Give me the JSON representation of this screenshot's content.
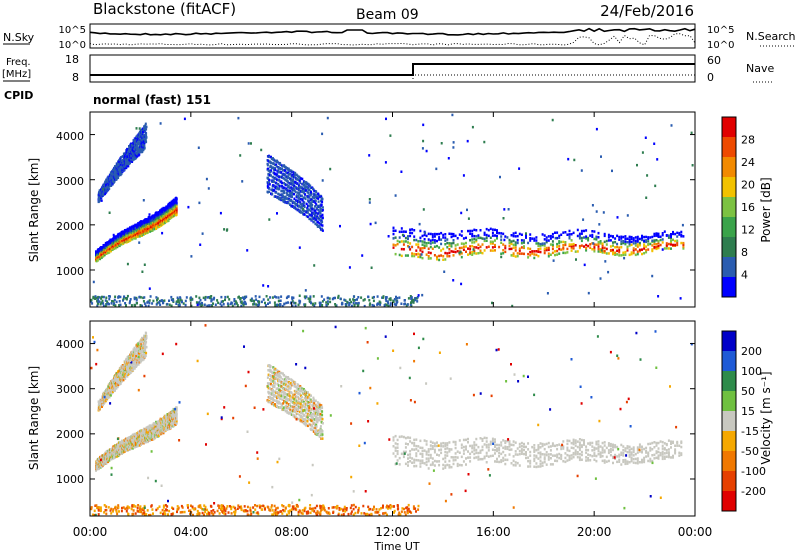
{
  "header": {
    "station": "Blackstone (fitACF)",
    "beam": "Beam 09",
    "date": "24/Feb/2016"
  },
  "params": {
    "nsky_label": "N.Sky",
    "nsearch_label": "N.Search",
    "nsky_ticks": [
      "10^5",
      "10^0"
    ],
    "nsearch_ticks": [
      "10^5",
      "10^0"
    ],
    "freq_label": "Freq.",
    "freq_unit": "[MHz]",
    "freq_ticks": [
      "18",
      "8"
    ],
    "nave_label": "Nave",
    "nave_ticks": [
      "60",
      "0"
    ],
    "cpid_label": "CPID",
    "cpid_value": "normal (fast) 151"
  },
  "colors": {
    "power": [
      "#0000ff",
      "#2a5cb0",
      "#2e7d4f",
      "#3aa34a",
      "#7cc242",
      "#f2c200",
      "#f28a00",
      "#ee4a00",
      "#e10000"
    ],
    "velocity": [
      "#0000c8",
      "#1e5ad6",
      "#2e8b4a",
      "#6fc040",
      "#c8c8c0",
      "#f5a800",
      "#f07800",
      "#e64000",
      "#e00000"
    ]
  },
  "chart_data": [
    {
      "type": "heatmap",
      "name": "power",
      "ylabel": "Slant Range [km]",
      "xlabel": "Time UT",
      "xlim": [
        0,
        24
      ],
      "ylim": [
        180,
        4500
      ],
      "y_ticks": [
        "1000",
        "2000",
        "3000",
        "4000"
      ],
      "x_ticks": [
        "00:00",
        "04:00",
        "08:00",
        "12:00",
        "16:00",
        "20:00",
        "00:00"
      ],
      "colorbar": {
        "label": "Power [dB]",
        "ticks": [
          "4",
          "8",
          "12",
          "16",
          "20",
          "24",
          "28"
        ],
        "range": [
          0,
          30
        ]
      },
      "features": [
        {
          "t": [
            0.2,
            3.4
          ],
          "range_start": [
            1200,
            2300
          ],
          "range_end": [
            1400,
            2650
          ]
        },
        {
          "t": [
            0.3,
            2.2
          ],
          "range_start": [
            2500,
            3800
          ],
          "range_end": [
            2700,
            4300
          ]
        },
        {
          "t": [
            7.0,
            9.2
          ],
          "range_start": [
            2800,
            1900
          ],
          "range_end": [
            3600,
            2600
          ]
        },
        {
          "t": [
            12.0,
            23.5
          ],
          "range_start": [
            1300,
            1450
          ],
          "range_end": [
            1900,
            1800
          ]
        }
      ]
    },
    {
      "type": "heatmap",
      "name": "velocity",
      "ylabel": "Slant Range [km]",
      "xlabel": "Time UT",
      "xlim": [
        0,
        24
      ],
      "ylim": [
        180,
        4500
      ],
      "y_ticks": [
        "1000",
        "2000",
        "3000",
        "4000"
      ],
      "x_ticks": [
        "00:00",
        "04:00",
        "08:00",
        "12:00",
        "16:00",
        "20:00",
        "00:00"
      ],
      "colorbar": {
        "label": "Velocity [m s⁻¹]",
        "ticks": [
          "200",
          "100",
          "50",
          "15",
          "-15",
          "-50",
          "-100",
          "-200"
        ],
        "range": [
          -250,
          250
        ]
      }
    }
  ]
}
